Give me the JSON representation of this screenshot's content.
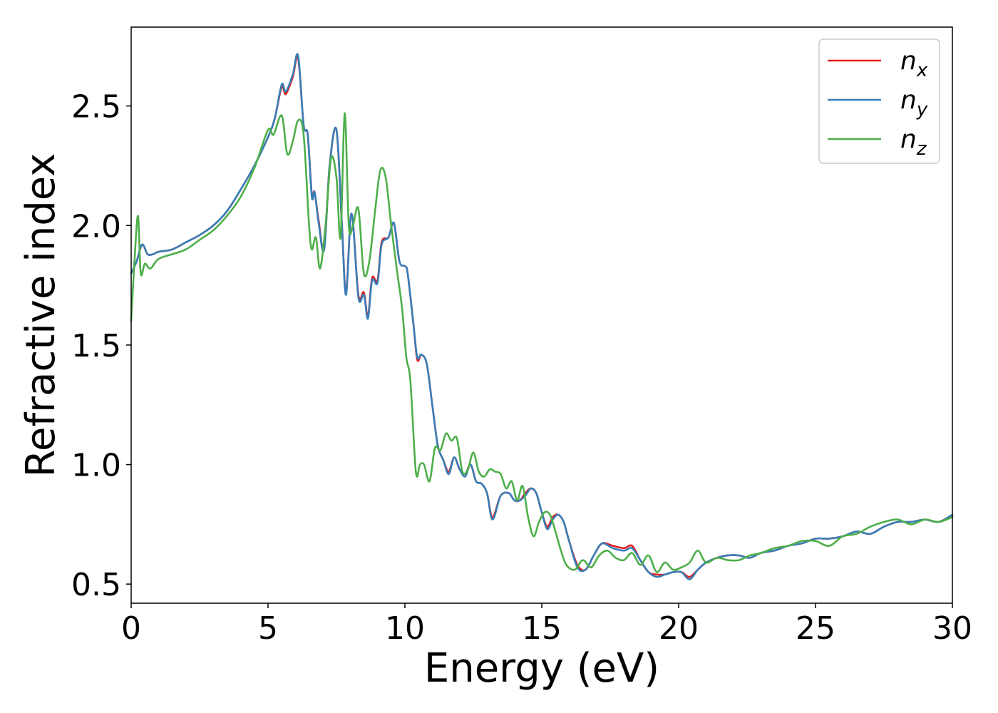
{
  "chart_data": {
    "type": "line",
    "xlabel": "Energy (eV)",
    "ylabel": "Refractive index",
    "xlim": [
      0,
      30
    ],
    "ylim": [
      0.42,
      2.83
    ],
    "xticks": [
      "0",
      "5",
      "10",
      "15",
      "20",
      "25",
      "30"
    ],
    "yticks": [
      "0.5",
      "1.0",
      "1.5",
      "2.0",
      "2.5"
    ],
    "grid": false,
    "legend_position": "top-right",
    "series": [
      {
        "name": "n_x",
        "label_main": "n",
        "label_sub": "x",
        "color": "#e41a1c",
        "x": [
          0,
          0.2,
          0.4,
          0.6,
          0.8,
          1,
          1.5,
          2,
          2.5,
          3,
          3.5,
          4,
          4.5,
          5,
          5.25,
          5.5,
          5.65,
          5.9,
          6.1,
          6.3,
          6.45,
          6.6,
          6.7,
          6.85,
          7.05,
          7.25,
          7.5,
          7.7,
          7.85,
          8.05,
          8.3,
          8.5,
          8.65,
          8.8,
          9,
          9.15,
          9.4,
          9.6,
          9.8,
          10,
          10.1,
          10.3,
          10.45,
          10.6,
          10.8,
          11,
          11.2,
          11.4,
          11.6,
          11.8,
          12,
          12.2,
          12.4,
          12.6,
          12.8,
          13,
          13.2,
          13.5,
          13.8,
          14,
          14.2,
          14.4,
          14.6,
          14.8,
          15,
          15.2,
          15.4,
          15.6,
          15.8,
          16,
          16.3,
          16.6,
          16.9,
          17.2,
          17.6,
          18,
          18.3,
          18.6,
          18.9,
          19.2,
          19.5,
          19.8,
          20.1,
          20.4,
          20.7,
          21,
          21.4,
          21.8,
          22.2,
          22.6,
          23,
          23.5,
          24,
          24.5,
          25,
          25.5,
          26,
          26.5,
          27,
          27.5,
          28,
          28.5,
          29,
          29.5,
          30
        ],
        "y": [
          1.8,
          1.85,
          1.92,
          1.88,
          1.88,
          1.89,
          1.9,
          1.93,
          1.96,
          2.0,
          2.06,
          2.15,
          2.25,
          2.37,
          2.45,
          2.58,
          2.55,
          2.62,
          2.7,
          2.42,
          2.38,
          2.13,
          2.14,
          2.02,
          1.9,
          2.25,
          2.4,
          2.0,
          1.72,
          2.05,
          1.71,
          1.72,
          1.62,
          1.78,
          1.77,
          1.93,
          1.95,
          2.01,
          1.85,
          1.83,
          1.8,
          1.6,
          1.44,
          1.46,
          1.42,
          1.25,
          1.08,
          1.02,
          0.97,
          1.03,
          0.98,
          0.96,
          1.0,
          0.93,
          0.92,
          0.88,
          0.78,
          0.87,
          0.88,
          0.85,
          0.85,
          0.88,
          0.9,
          0.88,
          0.8,
          0.74,
          0.78,
          0.79,
          0.76,
          0.68,
          0.58,
          0.56,
          0.62,
          0.67,
          0.66,
          0.65,
          0.66,
          0.6,
          0.55,
          0.54,
          0.54,
          0.55,
          0.55,
          0.53,
          0.56,
          0.59,
          0.61,
          0.62,
          0.62,
          0.61,
          0.63,
          0.64,
          0.66,
          0.67,
          0.69,
          0.69,
          0.7,
          0.72,
          0.71,
          0.74,
          0.76,
          0.76,
          0.77,
          0.76,
          0.79
        ]
      },
      {
        "name": "n_y",
        "label_main": "n",
        "label_sub": "y",
        "color": "#377eb8",
        "x": [
          0,
          0.2,
          0.4,
          0.6,
          0.8,
          1,
          1.5,
          2,
          2.5,
          3,
          3.5,
          4,
          4.5,
          5,
          5.25,
          5.5,
          5.65,
          5.9,
          6.1,
          6.3,
          6.45,
          6.6,
          6.7,
          6.85,
          7.05,
          7.25,
          7.5,
          7.7,
          7.85,
          8.05,
          8.3,
          8.5,
          8.65,
          8.8,
          9,
          9.15,
          9.4,
          9.6,
          9.8,
          10,
          10.1,
          10.3,
          10.45,
          10.6,
          10.8,
          11,
          11.2,
          11.4,
          11.6,
          11.8,
          12,
          12.2,
          12.4,
          12.6,
          12.8,
          13,
          13.2,
          13.5,
          13.8,
          14,
          14.2,
          14.4,
          14.6,
          14.8,
          15,
          15.2,
          15.4,
          15.6,
          15.8,
          16,
          16.3,
          16.6,
          16.9,
          17.2,
          17.6,
          18,
          18.3,
          18.6,
          18.9,
          19.2,
          19.5,
          19.8,
          20.1,
          20.4,
          20.7,
          21,
          21.4,
          21.8,
          22.2,
          22.6,
          23,
          23.5,
          24,
          24.5,
          25,
          25.5,
          26,
          26.5,
          27,
          27.5,
          28,
          28.5,
          29,
          29.5,
          30
        ],
        "y": [
          1.8,
          1.85,
          1.92,
          1.88,
          1.88,
          1.89,
          1.9,
          1.93,
          1.96,
          2.0,
          2.06,
          2.15,
          2.25,
          2.37,
          2.45,
          2.59,
          2.56,
          2.63,
          2.71,
          2.42,
          2.38,
          2.12,
          2.14,
          2.01,
          1.9,
          2.25,
          2.4,
          2.0,
          1.71,
          2.05,
          1.7,
          1.71,
          1.61,
          1.77,
          1.76,
          1.92,
          1.95,
          2.01,
          1.85,
          1.83,
          1.8,
          1.6,
          1.45,
          1.46,
          1.42,
          1.25,
          1.08,
          1.02,
          0.96,
          1.03,
          0.98,
          0.95,
          1.0,
          0.93,
          0.92,
          0.88,
          0.77,
          0.87,
          0.88,
          0.85,
          0.85,
          0.87,
          0.9,
          0.88,
          0.8,
          0.73,
          0.77,
          0.79,
          0.76,
          0.68,
          0.57,
          0.56,
          0.62,
          0.67,
          0.65,
          0.64,
          0.65,
          0.6,
          0.55,
          0.53,
          0.54,
          0.55,
          0.55,
          0.52,
          0.56,
          0.59,
          0.61,
          0.62,
          0.62,
          0.61,
          0.63,
          0.64,
          0.66,
          0.67,
          0.69,
          0.69,
          0.7,
          0.72,
          0.71,
          0.74,
          0.76,
          0.76,
          0.77,
          0.76,
          0.79
        ]
      },
      {
        "name": "n_z",
        "label_main": "n",
        "label_sub": "z",
        "color": "#4daf4a",
        "x": [
          0,
          0.12,
          0.25,
          0.35,
          0.5,
          0.7,
          1,
          1.5,
          2,
          2.5,
          3,
          3.5,
          4,
          4.5,
          5,
          5.2,
          5.5,
          5.7,
          5.9,
          6.1,
          6.3,
          6.5,
          6.6,
          6.75,
          6.9,
          7.1,
          7.3,
          7.5,
          7.65,
          7.8,
          7.95,
          8.1,
          8.3,
          8.5,
          8.7,
          8.9,
          9.1,
          9.3,
          9.5,
          9.7,
          9.9,
          10.05,
          10.2,
          10.4,
          10.55,
          10.7,
          10.9,
          11.1,
          11.3,
          11.5,
          11.7,
          11.9,
          12.1,
          12.3,
          12.5,
          12.7,
          12.9,
          13.1,
          13.3,
          13.5,
          13.7,
          13.9,
          14.1,
          14.3,
          14.5,
          14.7,
          14.9,
          15.1,
          15.3,
          15.5,
          15.7,
          15.9,
          16.2,
          16.5,
          16.8,
          17.1,
          17.4,
          17.7,
          18,
          18.3,
          18.6,
          18.9,
          19.2,
          19.5,
          19.8,
          20.1,
          20.4,
          20.7,
          21,
          21.4,
          21.8,
          22.2,
          22.6,
          23,
          23.5,
          24,
          24.5,
          25,
          25.5,
          26,
          26.5,
          27,
          27.5,
          28,
          28.5,
          29,
          29.5,
          30
        ],
        "y": [
          1.6,
          1.85,
          2.04,
          1.8,
          1.84,
          1.82,
          1.86,
          1.88,
          1.9,
          1.94,
          1.98,
          2.04,
          2.12,
          2.24,
          2.4,
          2.38,
          2.46,
          2.3,
          2.35,
          2.44,
          2.38,
          2.0,
          1.9,
          1.95,
          1.82,
          2.0,
          2.28,
          2.2,
          1.95,
          2.47,
          2.0,
          2.0,
          2.07,
          1.8,
          1.85,
          2.05,
          2.23,
          2.2,
          2.0,
          1.82,
          1.65,
          1.45,
          1.35,
          0.97,
          1.0,
          1.0,
          0.93,
          1.07,
          1.06,
          1.13,
          1.1,
          1.11,
          0.97,
          0.98,
          1.05,
          0.97,
          0.95,
          0.98,
          0.97,
          0.96,
          0.9,
          0.93,
          0.85,
          0.91,
          0.78,
          0.7,
          0.76,
          0.8,
          0.79,
          0.72,
          0.64,
          0.58,
          0.56,
          0.6,
          0.57,
          0.62,
          0.64,
          0.61,
          0.6,
          0.63,
          0.58,
          0.62,
          0.55,
          0.59,
          0.56,
          0.57,
          0.59,
          0.64,
          0.59,
          0.61,
          0.6,
          0.6,
          0.62,
          0.63,
          0.65,
          0.66,
          0.68,
          0.68,
          0.66,
          0.7,
          0.71,
          0.74,
          0.76,
          0.77,
          0.75,
          0.77,
          0.76,
          0.78
        ]
      }
    ]
  }
}
